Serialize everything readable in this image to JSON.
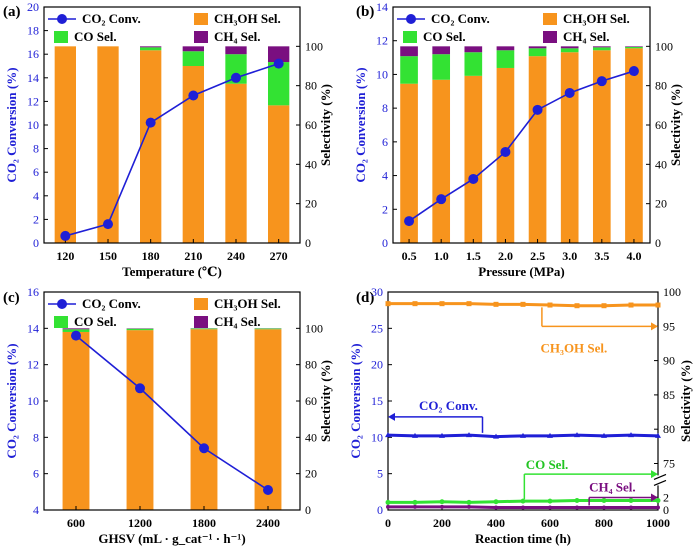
{
  "colors": {
    "conv": "#1f1fd6",
    "ch3oh": "#f7941d",
    "co": "#33e233",
    "ch4": "#7a0f80",
    "axis": "#000000"
  },
  "chart_data": [
    {
      "panel": "(a)",
      "type": "bar",
      "xlabel": "Temperature (℃)",
      "ylabel_left": "CO₂ Conversion (%)",
      "ylabel_right": "Selectivity (%)",
      "categories": [
        "120",
        "150",
        "180",
        "210",
        "240",
        "270"
      ],
      "ylim_left": [
        0,
        20
      ],
      "yticks_left": [
        0,
        2,
        4,
        6,
        8,
        10,
        12,
        14,
        16,
        18,
        20
      ],
      "ylim_right": [
        0,
        120
      ],
      "yticks_right": [
        0,
        20,
        40,
        60,
        80,
        100
      ],
      "legend": [
        "CO₂ Conv.",
        "CH₃OH Sel.",
        "CO Sel.",
        "CH₄ Sel."
      ],
      "series": [
        {
          "name": "CH₃OH Sel.",
          "kind": "stacked-bar",
          "values": [
            100,
            100,
            98,
            90,
            81,
            70
          ]
        },
        {
          "name": "CO Sel.",
          "kind": "stacked-bar",
          "values": [
            0,
            0,
            1.5,
            7.5,
            15,
            22
          ]
        },
        {
          "name": "CH₄ Sel.",
          "kind": "stacked-bar",
          "values": [
            0,
            0,
            0.5,
            2.5,
            4,
            8
          ]
        },
        {
          "name": "CO₂ Conv.",
          "kind": "line",
          "values": [
            0.6,
            1.6,
            10.2,
            12.5,
            14.0,
            15.2
          ]
        }
      ]
    },
    {
      "panel": "(b)",
      "type": "bar",
      "xlabel": "Pressure (MPa)",
      "ylabel_left": "CO₂ Conversion (%)",
      "ylabel_right": "Selectivity (%)",
      "categories": [
        "0.5",
        "1.0",
        "1.5",
        "2.0",
        "2.5",
        "3.0",
        "3.5",
        "4.0"
      ],
      "ylim_left": [
        0,
        14
      ],
      "yticks_left": [
        0,
        2,
        4,
        6,
        8,
        10,
        12,
        14
      ],
      "ylim_right": [
        0,
        120
      ],
      "yticks_right": [
        0,
        20,
        40,
        60,
        80,
        100
      ],
      "legend": [
        "CO₂ Conv.",
        "CH₃OH Sel.",
        "CO Sel.",
        "CH₄ Sel."
      ],
      "series": [
        {
          "name": "CH₃OH Sel.",
          "kind": "stacked-bar",
          "values": [
            81,
            83,
            85,
            89,
            95,
            97,
            98,
            99
          ]
        },
        {
          "name": "CO Sel.",
          "kind": "stacked-bar",
          "values": [
            14,
            13,
            12,
            9,
            4,
            2,
            1.5,
            0.7
          ]
        },
        {
          "name": "CH₄ Sel.",
          "kind": "stacked-bar",
          "values": [
            5,
            4,
            3,
            2,
            1,
            1,
            0.5,
            0.3
          ]
        },
        {
          "name": "CO₂ Conv.",
          "kind": "line",
          "values": [
            1.3,
            2.6,
            3.8,
            5.4,
            7.9,
            8.9,
            9.6,
            10.2
          ]
        }
      ]
    },
    {
      "panel": "(c)",
      "type": "bar",
      "xlabel": "GHSV (mL · g_cat⁻¹ · h⁻¹)",
      "ylabel_left": "CO₂ Conversion (%)",
      "ylabel_right": "Selectivity (%)",
      "categories": [
        "600",
        "1200",
        "1800",
        "2400"
      ],
      "ylim_left": [
        4,
        16
      ],
      "yticks_left": [
        4,
        6,
        8,
        10,
        12,
        14,
        16
      ],
      "ylim_right": [
        0,
        120
      ],
      "yticks_right": [
        0,
        20,
        40,
        60,
        80,
        100
      ],
      "legend": [
        "CO₂ Conv.",
        "CH₃OH Sel.",
        "CO Sel.",
        "CH₄ Sel."
      ],
      "series": [
        {
          "name": "CH₃OH Sel.",
          "kind": "stacked-bar",
          "values": [
            98,
            99,
            99.5,
            99.5
          ]
        },
        {
          "name": "CO Sel.",
          "kind": "stacked-bar",
          "values": [
            1.5,
            0.8,
            0.4,
            0.4
          ]
        },
        {
          "name": "CH₄ Sel.",
          "kind": "stacked-bar",
          "values": [
            0.5,
            0.2,
            0.1,
            0.1
          ]
        },
        {
          "name": "CO₂ Conv.",
          "kind": "line",
          "values": [
            13.6,
            10.7,
            7.4,
            5.1
          ]
        }
      ]
    },
    {
      "panel": "(d)",
      "type": "line",
      "xlabel": "Reaction time (h)",
      "ylabel_left": "CO₂ Conversion (%)",
      "ylabel_right": "Selectivity (%)",
      "xlim": [
        0,
        1000
      ],
      "xticks": [
        0,
        200,
        400,
        600,
        800,
        1000
      ],
      "ylim_left": [
        0,
        30
      ],
      "yticks_left": [
        0,
        5,
        10,
        15,
        20,
        25,
        30
      ],
      "yticks_right": [
        0,
        2,
        75,
        80,
        85,
        90,
        95,
        100
      ],
      "annotations": [
        "CH₃OH Sel.",
        "CO₂ Conv.",
        "CO Sel.",
        "CH₄ Sel."
      ],
      "series": [
        {
          "name": "CH₃OH Sel.",
          "x": [
            0,
            100,
            200,
            300,
            400,
            500,
            600,
            700,
            800,
            900,
            1000
          ],
          "values": [
            98.3,
            98.3,
            98.3,
            98.3,
            98.2,
            98.2,
            98.1,
            98.0,
            98.0,
            98.1,
            98.1
          ]
        },
        {
          "name": "CO₂ Conv.",
          "x": [
            0,
            100,
            200,
            300,
            400,
            500,
            600,
            700,
            800,
            900,
            1000
          ],
          "values": [
            10.3,
            10.2,
            10.2,
            10.3,
            10.1,
            10.2,
            10.2,
            10.3,
            10.2,
            10.3,
            10.2
          ]
        },
        {
          "name": "CO Sel.",
          "x": [
            0,
            100,
            200,
            300,
            400,
            500,
            600,
            700,
            800,
            900,
            1000
          ],
          "values": [
            1.2,
            1.2,
            1.3,
            1.2,
            1.3,
            1.4,
            1.4,
            1.5,
            1.5,
            1.5,
            1.5
          ]
        },
        {
          "name": "CH₄ Sel.",
          "x": [
            0,
            100,
            200,
            300,
            400,
            500,
            600,
            700,
            800,
            900,
            1000
          ],
          "values": [
            0.5,
            0.5,
            0.5,
            0.5,
            0.4,
            0.4,
            0.4,
            0.4,
            0.4,
            0.4,
            0.4
          ]
        }
      ]
    }
  ]
}
